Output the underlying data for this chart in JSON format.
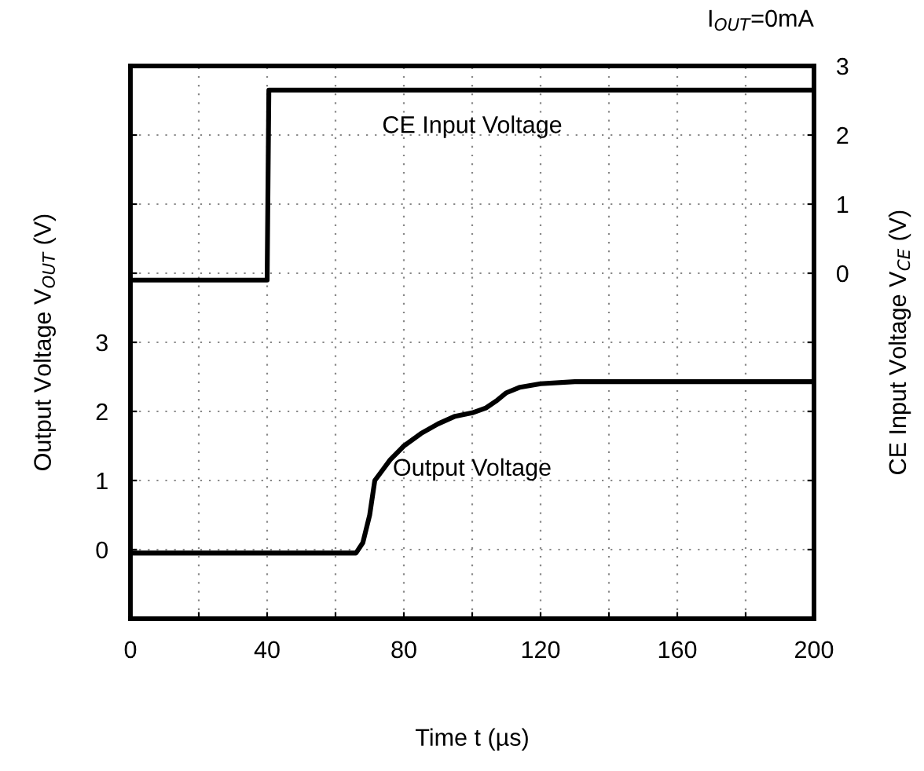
{
  "chart_data": {
    "type": "line",
    "subtitle": "I$_{OUT}$=0mA",
    "xlabel": "Time t (µs)",
    "ylabel": "Output Voltage V$_{OUT}$ (V)",
    "y2label": "CE Input Voltage V$_{CE}$ (V)",
    "xlim": [
      0,
      200
    ],
    "xticks": [
      0,
      {
        "value": 20,
        "label": null
      },
      40,
      {
        "value": 60,
        "label": null
      },
      80,
      {
        "value": 100,
        "label": null
      },
      120,
      {
        "value": 140,
        "label": null
      },
      160,
      {
        "value": 180,
        "label": null
      },
      200
    ],
    "ylim": [
      -1,
      7
    ],
    "yticks": [
      0,
      1,
      2,
      3,
      {
        "value": 4,
        "label": null
      },
      {
        "value": 5,
        "label": null
      },
      {
        "value": 6,
        "label": null
      }
    ],
    "y2lim": [
      -5,
      3
    ],
    "y2ticks": [
      {
        "value": -4,
        "label": null
      },
      {
        "value": -3,
        "label": null
      },
      {
        "value": -2,
        "label": null
      },
      {
        "value": -1,
        "label": null
      },
      0,
      1,
      2,
      3
    ],
    "grid": true,
    "series": [
      {
        "name": "CE Input Voltage",
        "color": "#000000",
        "axis": "y2",
        "x": [
          0,
          40,
          40.5,
          200
        ],
        "values": [
          -0.1,
          -0.1,
          2.65,
          2.65
        ]
      },
      {
        "name": "Output Voltage",
        "color": "#000000",
        "axis": "y",
        "x": [
          0,
          66,
          68,
          70,
          71.5,
          73,
          76,
          80,
          85,
          90,
          95,
          100,
          104,
          107,
          110,
          114,
          120,
          130,
          160,
          200
        ],
        "values": [
          -0.05,
          -0.05,
          0.1,
          0.5,
          1.0,
          1.1,
          1.3,
          1.5,
          1.68,
          1.82,
          1.93,
          1.98,
          2.05,
          2.15,
          2.27,
          2.35,
          2.4,
          2.43,
          2.43,
          2.43
        ]
      }
    ]
  }
}
